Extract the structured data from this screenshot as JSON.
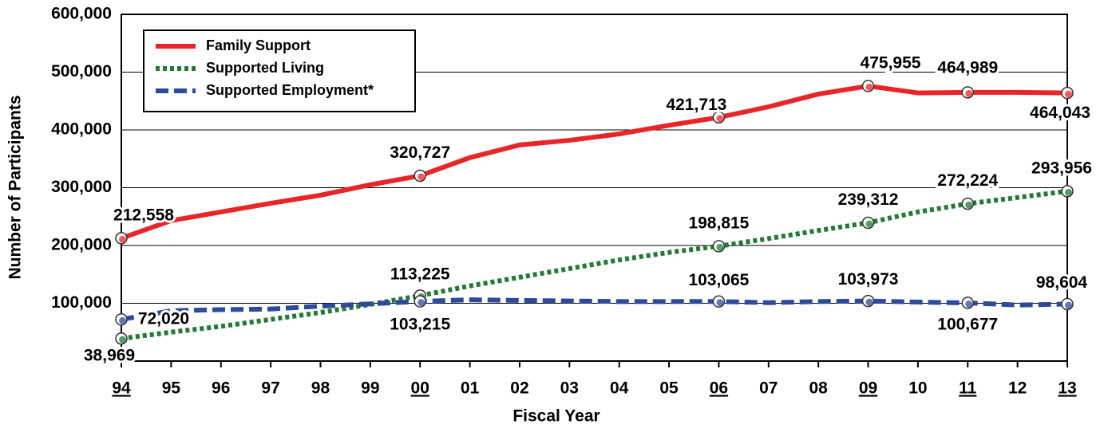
{
  "chart_data": {
    "type": "line",
    "x_label": "Fiscal Year",
    "y_label": "Number of Participants",
    "categories": [
      "94",
      "95",
      "96",
      "97",
      "98",
      "99",
      "00",
      "01",
      "02",
      "03",
      "04",
      "05",
      "06",
      "07",
      "08",
      "09",
      "10",
      "11",
      "12",
      "13"
    ],
    "underlined": [
      true,
      false,
      false,
      false,
      false,
      false,
      true,
      false,
      false,
      false,
      false,
      false,
      true,
      false,
      false,
      true,
      false,
      true,
      false,
      true
    ],
    "ylim": [
      0,
      600000
    ],
    "yticks": [
      {
        "value": 100000,
        "label": "100,000"
      },
      {
        "value": 200000,
        "label": "200,000"
      },
      {
        "value": 300000,
        "label": "300,000"
      },
      {
        "value": 400000,
        "label": "400,000"
      },
      {
        "value": 500000,
        "label": "500,000"
      },
      {
        "value": 600000,
        "label": "600,000"
      }
    ],
    "grid": true,
    "legend": "upper left",
    "series": [
      {
        "name": "Family Support",
        "color": "#e8262a",
        "dash": "solid",
        "values": [
          212558,
          243000,
          258000,
          273000,
          287000,
          305000,
          320727,
          352000,
          374000,
          382000,
          393000,
          408000,
          421713,
          440000,
          462000,
          475955,
          464000,
          464989,
          465000,
          464043
        ],
        "value_labels": [
          "212,558",
          null,
          null,
          null,
          null,
          null,
          "320,727",
          null,
          null,
          null,
          null,
          null,
          "421,713",
          null,
          null,
          "475,955",
          null,
          "464,989",
          null,
          "464,043"
        ]
      },
      {
        "name": "Supported Living",
        "color": "#217a35",
        "dash": "dotted",
        "values": [
          38969,
          50000,
          60000,
          72000,
          84000,
          98000,
          113225,
          130000,
          145000,
          160000,
          175000,
          188000,
          198815,
          212000,
          226000,
          239312,
          258000,
          272224,
          283000,
          293956
        ],
        "value_labels": [
          "38,969",
          null,
          null,
          null,
          null,
          null,
          "113,225",
          null,
          null,
          null,
          null,
          null,
          "198,815",
          null,
          null,
          "239,312",
          null,
          "272,224",
          null,
          "293,956"
        ]
      },
      {
        "name": "Supported Employment*",
        "color": "#2e4b9b",
        "dash": "dashed",
        "values": [
          72020,
          87000,
          89000,
          90000,
          95000,
          99000,
          103215,
          106000,
          105000,
          104000,
          103000,
          103000,
          103065,
          101000,
          103000,
          103973,
          102000,
          100677,
          97000,
          98604
        ],
        "value_labels": [
          "72,020",
          null,
          null,
          null,
          null,
          null,
          "103,215",
          null,
          null,
          null,
          null,
          null,
          "103,065",
          null,
          null,
          "103,973",
          null,
          "100,677",
          null,
          "98,604"
        ]
      }
    ]
  }
}
